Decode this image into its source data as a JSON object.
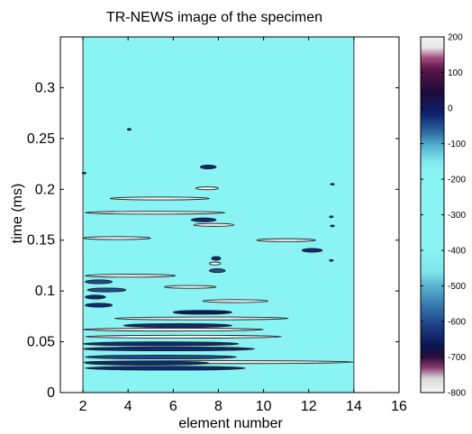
{
  "chart_data": {
    "type": "heatmap",
    "title": "TR-NEWS image of the specimen",
    "xlabel": "element number",
    "ylabel": "time (ms)",
    "xlim": [
      1,
      16
    ],
    "ylim": [
      0,
      0.35
    ],
    "xticks": [
      2,
      4,
      6,
      8,
      10,
      12,
      14,
      16
    ],
    "yticks": [
      0,
      0.05,
      0.1,
      0.15,
      0.2,
      0.25,
      0.3
    ],
    "data_extent_x": [
      2,
      14
    ],
    "background_level": -350,
    "colorbar": {
      "range": [
        -800,
        200
      ],
      "ticks": [
        200,
        100,
        0,
        -100,
        -200,
        -300,
        -400,
        -500,
        -600,
        -700,
        -800
      ]
    },
    "streaks": [
      {
        "x0": 2.0,
        "x1": 14.0,
        "t": 0.03,
        "level": -250
      },
      {
        "x0": 2.1,
        "x1": 9.2,
        "t": 0.024,
        "level": -680
      },
      {
        "x0": 2.1,
        "x1": 7.6,
        "t": 0.029,
        "level": -700
      },
      {
        "x0": 2.1,
        "x1": 8.8,
        "t": 0.035,
        "level": -640
      },
      {
        "x0": 2.0,
        "x1": 9.6,
        "t": 0.043,
        "level": -700
      },
      {
        "x0": 2.0,
        "x1": 8.9,
        "t": 0.048,
        "level": -650
      },
      {
        "x0": 2.1,
        "x1": 10.8,
        "t": 0.055,
        "level": -250
      },
      {
        "x0": 2.0,
        "x1": 10.0,
        "t": 0.062,
        "level": -250
      },
      {
        "x0": 3.8,
        "x1": 8.6,
        "t": 0.066,
        "level": -720
      },
      {
        "x0": 3.4,
        "x1": 11.1,
        "t": 0.073,
        "level": -250
      },
      {
        "x0": 6.0,
        "x1": 8.6,
        "t": 0.079,
        "level": -740
      },
      {
        "x0": 2.1,
        "x1": 3.3,
        "t": 0.086,
        "level": -700
      },
      {
        "x0": 7.3,
        "x1": 10.2,
        "t": 0.09,
        "level": -250
      },
      {
        "x0": 2.1,
        "x1": 3.0,
        "t": 0.094,
        "level": -700
      },
      {
        "x0": 2.2,
        "x1": 3.9,
        "t": 0.101,
        "level": -600
      },
      {
        "x0": 5.6,
        "x1": 7.9,
        "t": 0.104,
        "level": -250
      },
      {
        "x0": 2.1,
        "x1": 3.3,
        "t": 0.109,
        "level": -620
      },
      {
        "x0": 2.1,
        "x1": 6.1,
        "t": 0.115,
        "level": -250
      },
      {
        "x0": 7.6,
        "x1": 8.3,
        "t": 0.12,
        "level": -600
      },
      {
        "x0": 7.6,
        "x1": 8.1,
        "t": 0.127,
        "level": -250
      },
      {
        "x0": 7.7,
        "x1": 8.1,
        "t": 0.132,
        "level": -700
      },
      {
        "x0": 11.7,
        "x1": 12.6,
        "t": 0.14,
        "level": -700
      },
      {
        "x0": 9.7,
        "x1": 12.3,
        "t": 0.15,
        "level": -250
      },
      {
        "x0": 2.0,
        "x1": 5.0,
        "t": 0.152,
        "level": -250
      },
      {
        "x0": 6.9,
        "x1": 8.7,
        "t": 0.165,
        "level": -250
      },
      {
        "x0": 6.8,
        "x1": 7.9,
        "t": 0.17,
        "level": -700
      },
      {
        "x0": 2.1,
        "x1": 8.3,
        "t": 0.177,
        "level": -250
      },
      {
        "x0": 3.2,
        "x1": 7.6,
        "t": 0.191,
        "level": -250
      },
      {
        "x0": 7.0,
        "x1": 8.0,
        "t": 0.201,
        "level": -250
      },
      {
        "x0": 7.2,
        "x1": 7.9,
        "t": 0.222,
        "level": -700
      }
    ],
    "specks": [
      {
        "x": 2.05,
        "t": 0.216
      },
      {
        "x": 4.05,
        "t": 0.259
      },
      {
        "x": 13.05,
        "t": 0.205
      },
      {
        "x": 13.0,
        "t": 0.173
      },
      {
        "x": 13.05,
        "t": 0.164
      },
      {
        "x": 13.0,
        "t": 0.13
      }
    ]
  }
}
